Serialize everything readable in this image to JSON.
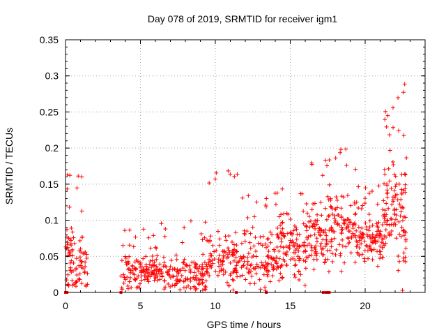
{
  "chart_data": {
    "type": "scatter",
    "title": "Day 078 of 2019, SRMTID for receiver igm1",
    "xlabel": "GPS time / hours",
    "ylabel": "SRMTID / TECUs",
    "xlim": [
      0,
      24
    ],
    "ylim": [
      0,
      0.35
    ],
    "xticks": [
      0,
      5,
      10,
      15,
      20
    ],
    "yticks": [
      0,
      0.05,
      0.1,
      0.15,
      0.2,
      0.25,
      0.3,
      0.35
    ],
    "xtick_labels": [
      "0",
      "5",
      "10",
      "15",
      "20"
    ],
    "ytick_labels": [
      "0",
      "0.05",
      "0.1",
      "0.15",
      "0.2",
      "0.25",
      "0.3",
      "0.35"
    ],
    "grid": true,
    "marker": "+",
    "color": "#ff0000",
    "series_profile": [
      {
        "t_start": 0.0,
        "t_end": 0.55,
        "level": 0.045,
        "spread": 0.035,
        "max": 0.165,
        "density": 40
      },
      {
        "t_start": 0.55,
        "t_end": 1.5,
        "level": 0.035,
        "spread": 0.03,
        "max": 0.165,
        "density": 45
      },
      {
        "t_start": 3.7,
        "t_end": 6.0,
        "level": 0.03,
        "spread": 0.02,
        "max": 0.09,
        "density": 110
      },
      {
        "t_start": 6.0,
        "t_end": 9.5,
        "level": 0.025,
        "spread": 0.022,
        "max": 0.1,
        "density": 160
      },
      {
        "t_start": 9.5,
        "t_end": 11.5,
        "level": 0.04,
        "spread": 0.03,
        "max": 0.18,
        "density": 100
      },
      {
        "t_start": 11.5,
        "t_end": 14.0,
        "level": 0.045,
        "spread": 0.03,
        "max": 0.14,
        "density": 110
      },
      {
        "t_start": 14.0,
        "t_end": 16.0,
        "level": 0.06,
        "spread": 0.035,
        "max": 0.15,
        "density": 110
      },
      {
        "t_start": 16.0,
        "t_end": 17.5,
        "level": 0.075,
        "spread": 0.035,
        "max": 0.19,
        "density": 90
      },
      {
        "t_start": 17.5,
        "t_end": 19.5,
        "level": 0.09,
        "spread": 0.04,
        "max": 0.2,
        "density": 110
      },
      {
        "t_start": 19.5,
        "t_end": 21.2,
        "level": 0.075,
        "spread": 0.025,
        "max": 0.15,
        "density": 100
      },
      {
        "t_start": 21.2,
        "t_end": 22.0,
        "level": 0.12,
        "spread": 0.06,
        "max": 0.26,
        "density": 60
      },
      {
        "t_start": 22.0,
        "t_end": 22.8,
        "level": 0.11,
        "spread": 0.06,
        "max": 0.3,
        "density": 60
      }
    ],
    "zero_points_x": [
      0.0,
      0.1,
      3.7,
      11.4,
      13.4,
      17.2,
      17.4,
      17.5,
      17.6
    ]
  }
}
